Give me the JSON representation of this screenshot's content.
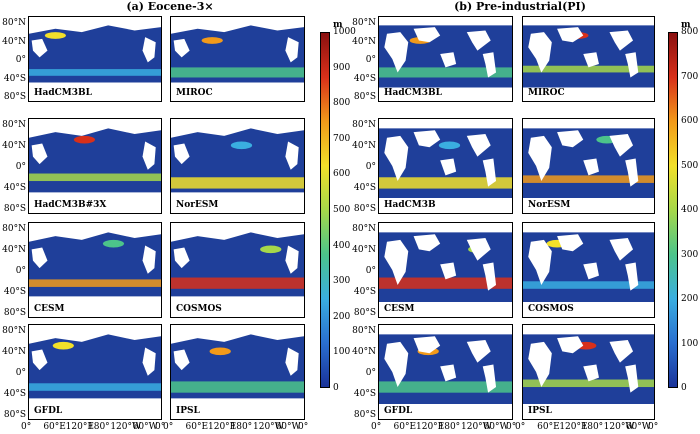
{
  "titles": {
    "left": "(a) Eocene-3×",
    "right": "(b) Pre-industrial(PI)"
  },
  "lat_ticks": [
    "80°N",
    "40°N",
    "0°",
    "40°S",
    "80°S"
  ],
  "lon_ticks": [
    "0°",
    "60°E",
    "120°E",
    "180°",
    "120°W",
    "60°W",
    "0°"
  ],
  "left_models": [
    "HadCM3BL",
    "MIROC",
    "HadCM3B#3X",
    "NorESM",
    "CESM",
    "COSMOS",
    "GFDL",
    "IPSL"
  ],
  "right_models": [
    "HadCM3BL",
    "MIROC",
    "HadCM3B",
    "NorESM",
    "CESM",
    "COSMOS",
    "GFDL",
    "IPSL"
  ],
  "left_colorbar": {
    "unit": "m",
    "ticks": [
      "1000",
      "900",
      "800",
      "700",
      "600",
      "500",
      "400",
      "300",
      "200",
      "100",
      "0"
    ]
  },
  "right_colorbar": {
    "unit": "m",
    "ticks": [
      "800",
      "700",
      "600",
      "500",
      "400",
      "300",
      "200",
      "100",
      "0"
    ]
  },
  "colors": {
    "ocean_low": "#1f3f9a",
    "land": "#ffffff",
    "colormap": [
      "#1a3399",
      "#2a6fd0",
      "#3aaee0",
      "#4cc48a",
      "#a6d84a",
      "#f2e02a",
      "#f29a1a",
      "#d8301a",
      "#8a1010"
    ]
  }
}
